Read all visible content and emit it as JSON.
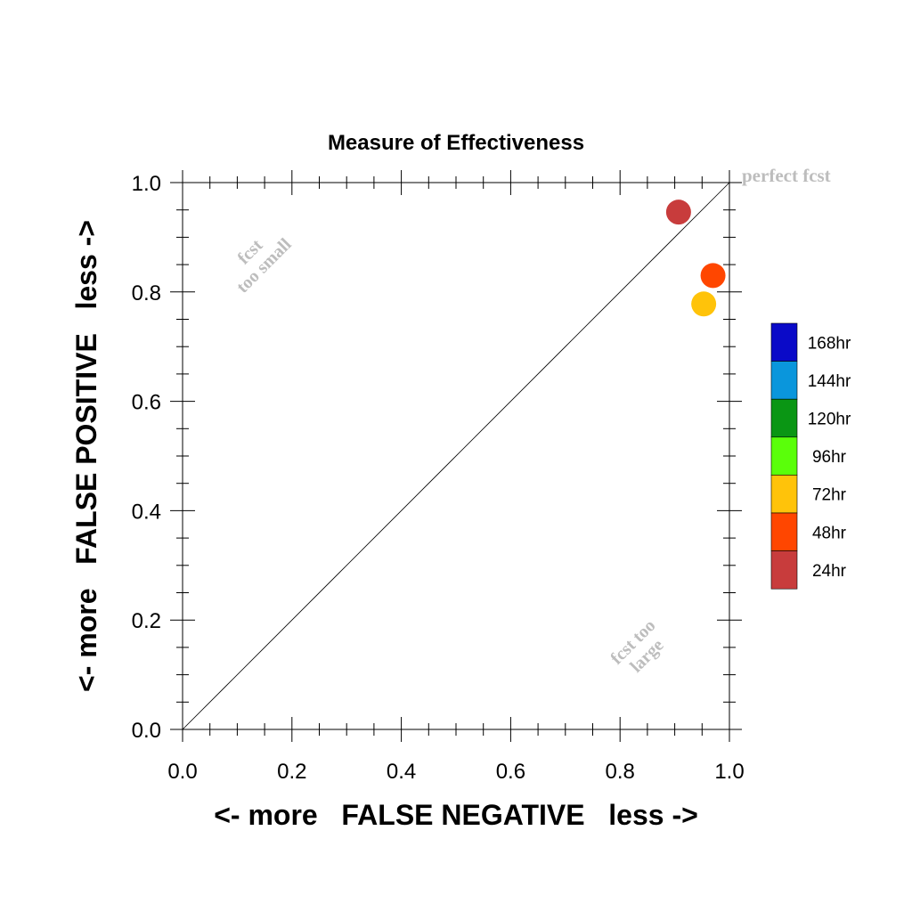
{
  "chart_data": {
    "type": "scatter",
    "title": "Measure of Effectiveness",
    "xlabel": "<- more   FALSE NEGATIVE   less ->",
    "ylabel": "<- more   FALSE POSITIVE   less ->",
    "xlim": [
      0.0,
      1.0
    ],
    "ylim": [
      0.0,
      1.0
    ],
    "x_ticks": [
      "0.0",
      "0.2",
      "0.4",
      "0.6",
      "0.8",
      "1.0"
    ],
    "y_ticks": [
      "0.0",
      "0.2",
      "0.4",
      "0.6",
      "0.8",
      "1.0"
    ],
    "x_tick_values": [
      0.0,
      0.2,
      0.4,
      0.6,
      0.8,
      1.0
    ],
    "y_tick_values": [
      0.0,
      0.2,
      0.4,
      0.6,
      0.8,
      1.0
    ],
    "diagonal_line": true,
    "grid": false,
    "annotations": {
      "perfect": "perfect fcst",
      "too_small_line1": "fcst",
      "too_small_line2": "too small",
      "too_large_line1": "fcst too",
      "too_large_line2": "large"
    },
    "legend_position": "right",
    "legend": [
      {
        "label": "168hr",
        "color": "#0a0ac8"
      },
      {
        "label": "144hr",
        "color": "#0a96dc"
      },
      {
        "label": "120hr",
        "color": "#0a9614"
      },
      {
        "label": "96hr",
        "color": "#5aff0a"
      },
      {
        "label": "72hr",
        "color": "#ffc30a"
      },
      {
        "label": "48hr",
        "color": "#ff4600"
      },
      {
        "label": "24hr",
        "color": "#c83c3c"
      }
    ],
    "points": [
      {
        "series": "24hr",
        "x": 0.907,
        "y": 0.946,
        "color": "#c83c3c"
      },
      {
        "series": "48hr",
        "x": 0.97,
        "y": 0.83,
        "color": "#ff4600"
      },
      {
        "series": "72hr",
        "x": 0.953,
        "y": 0.778,
        "color": "#ffc30a"
      }
    ]
  }
}
